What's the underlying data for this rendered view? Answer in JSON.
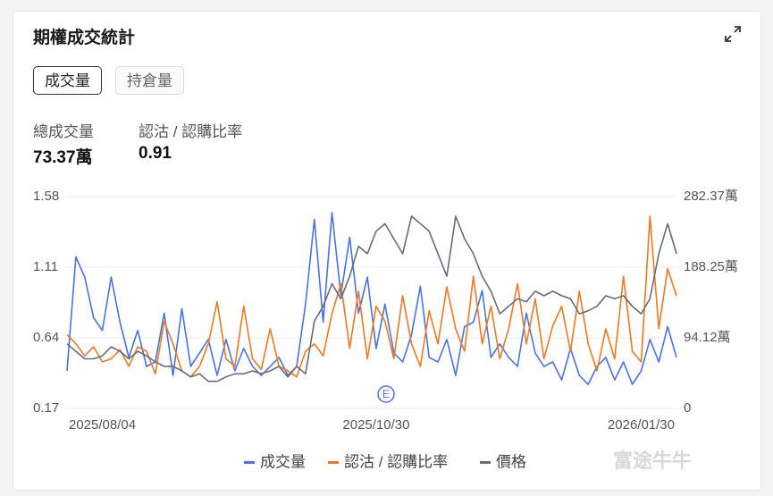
{
  "header": {
    "title": "期權成交統計"
  },
  "tabs": [
    "成交量",
    "持倉量"
  ],
  "stats": [
    {
      "label": "總成交量",
      "value": "73.37萬"
    },
    {
      "label": "認沽 / 認購比率",
      "value": "0.91"
    }
  ],
  "watermark": "富途牛牛",
  "chart_data": {
    "type": "line",
    "categories": [
      null,
      null,
      null,
      null,
      "2025/08/04",
      null,
      null,
      null,
      null,
      null,
      null,
      null,
      null,
      null,
      null,
      null,
      null,
      null,
      null,
      null,
      null,
      null,
      null,
      null,
      null,
      null,
      null,
      null,
      null,
      null,
      null,
      null,
      null,
      null,
      null,
      "2025/10/30",
      null,
      null,
      null,
      null,
      null,
      null,
      null,
      null,
      null,
      null,
      null,
      null,
      null,
      null,
      null,
      null,
      null,
      null,
      null,
      null,
      null,
      null,
      null,
      null,
      null,
      null,
      null,
      null,
      null,
      "2026/01/30",
      null,
      null,
      null,
      null
    ],
    "series": [
      {
        "name": "成交量",
        "color": "#4a72e8",
        "axis": "y2",
        "values": [
          50,
          202,
          175,
          121,
          104,
          175,
          115,
          68,
          104,
          56,
          62,
          127,
          44,
          133,
          56,
          74,
          92,
          44,
          92,
          50,
          80,
          56,
          44,
          56,
          68,
          44,
          56,
          139,
          252,
          115,
          261,
          151,
          228,
          127,
          175,
          80,
          139,
          74,
          62,
          98,
          163,
          68,
          62,
          92,
          44,
          109,
          115,
          157,
          68,
          86,
          68,
          56,
          127,
          74,
          56,
          62,
          38,
          80,
          44,
          32,
          56,
          68,
          38,
          62,
          32,
          50,
          92,
          62,
          109,
          68
        ]
      },
      {
        "name": "認沽 / 認購比率",
        "color": "#f07820",
        "values": [
          0.66,
          0.6,
          0.52,
          0.58,
          0.48,
          0.5,
          0.56,
          0.45,
          0.58,
          0.55,
          0.4,
          0.75,
          0.6,
          0.42,
          0.38,
          0.45,
          0.6,
          0.88,
          0.5,
          0.45,
          0.85,
          0.5,
          0.43,
          0.7,
          0.45,
          0.42,
          0.38,
          0.55,
          0.6,
          0.52,
          0.8,
          1.0,
          0.57,
          0.95,
          0.5,
          0.85,
          0.75,
          0.5,
          0.92,
          0.6,
          0.45,
          0.82,
          0.6,
          0.98,
          0.7,
          0.55,
          1.05,
          0.6,
          0.85,
          0.5,
          0.7,
          1.0,
          0.6,
          0.9,
          0.5,
          0.72,
          0.85,
          0.55,
          0.95,
          0.6,
          0.42,
          0.7,
          0.5,
          1.05,
          0.55,
          0.48,
          1.45,
          0.7,
          1.1,
          0.92
        ]
      },
      {
        "name": "價格",
        "color": "#666c78",
        "values": [
          0.6,
          0.55,
          0.5,
          0.5,
          0.52,
          0.58,
          0.55,
          0.5,
          0.55,
          0.52,
          0.48,
          0.45,
          0.45,
          0.42,
          0.38,
          0.4,
          0.35,
          0.35,
          0.38,
          0.4,
          0.4,
          0.42,
          0.4,
          0.42,
          0.45,
          0.38,
          0.45,
          0.4,
          0.75,
          0.85,
          1.0,
          0.9,
          1.05,
          1.25,
          1.2,
          1.35,
          1.4,
          1.3,
          1.2,
          1.45,
          1.4,
          1.35,
          1.2,
          1.05,
          1.45,
          1.3,
          1.2,
          1.05,
          0.95,
          0.8,
          0.85,
          0.9,
          0.88,
          0.95,
          0.92,
          0.95,
          0.92,
          0.9,
          0.8,
          0.82,
          0.85,
          0.92,
          0.9,
          0.92,
          0.85,
          0.8,
          0.9,
          1.2,
          1.4,
          1.2
        ]
      }
    ],
    "ylim": [
      0.17,
      1.58
    ],
    "yticks": [
      0.17,
      0.64,
      1.11,
      1.58
    ],
    "y2lim": [
      0,
      282.37
    ],
    "y2ticks": [
      0,
      {
        "value": 94.12,
        "label": "94.12萬"
      },
      {
        "value": 188.25,
        "label": "188.25萬"
      },
      {
        "value": 282.37,
        "label": "282.37萬"
      }
    ],
    "grid": true,
    "annotation": "E"
  }
}
